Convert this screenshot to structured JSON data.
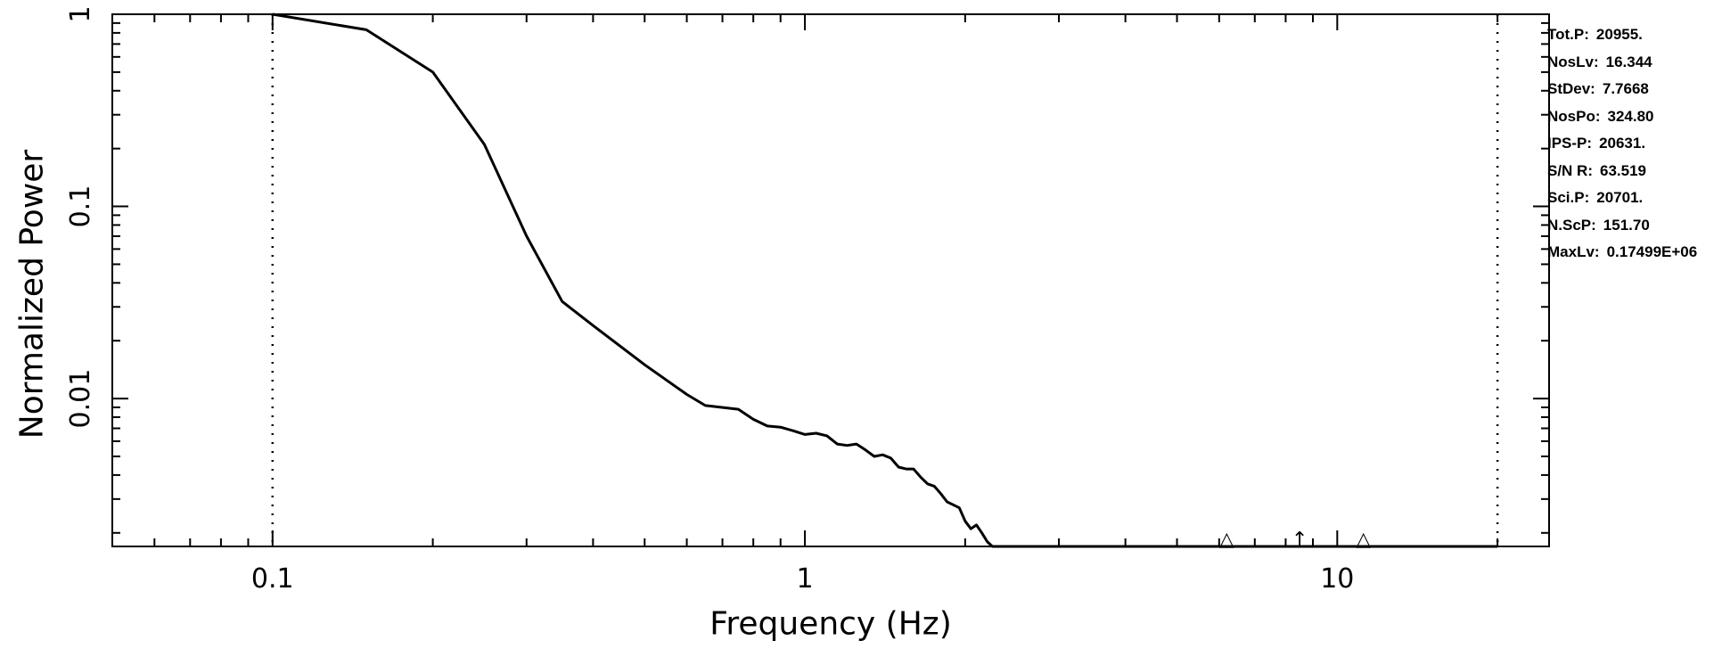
{
  "chart_data": {
    "type": "line",
    "xlabel": "Frequency (Hz)",
    "ylabel": "Normalized Power",
    "x_scale": "log",
    "y_scale": "log",
    "xlim": [
      0.05,
      25
    ],
    "ylim": [
      0.0017,
      1
    ],
    "x_ticks": [
      {
        "value": 0.1,
        "label": "0.1"
      },
      {
        "value": 1,
        "label": "1"
      },
      {
        "value": 10,
        "label": "10"
      }
    ],
    "y_ticks": [
      {
        "value": 1,
        "label": "1"
      },
      {
        "value": 0.1,
        "label": "0.1"
      },
      {
        "value": 0.01,
        "label": "0.01"
      }
    ],
    "vertical_dotted_lines": [
      0.1,
      20
    ],
    "series": [
      {
        "x": [
          0.1,
          0.15,
          0.2,
          0.25,
          0.3,
          0.35,
          0.4,
          0.5,
          0.6,
          0.65,
          0.75,
          0.8,
          0.85,
          0.9,
          0.95,
          1.0,
          1.05,
          1.1,
          1.15,
          1.2,
          1.25,
          1.3,
          1.35,
          1.4,
          1.45,
          1.5,
          1.55,
          1.6,
          1.65,
          1.7,
          1.75,
          1.8,
          1.85,
          1.9,
          1.95,
          2.0,
          2.05,
          2.1,
          2.15,
          2.2,
          2.25,
          2.3,
          3.0,
          5.0,
          10.0,
          20.0
        ],
        "y": [
          1.0,
          0.83,
          0.5,
          0.21,
          0.07,
          0.032,
          0.024,
          0.015,
          0.0105,
          0.0092,
          0.0088,
          0.0078,
          0.0072,
          0.0071,
          0.0068,
          0.0065,
          0.0066,
          0.0064,
          0.0058,
          0.0057,
          0.0058,
          0.0054,
          0.005,
          0.0051,
          0.0049,
          0.0044,
          0.0043,
          0.0043,
          0.0039,
          0.0036,
          0.0035,
          0.0032,
          0.0029,
          0.0028,
          0.0027,
          0.0023,
          0.0021,
          0.0022,
          0.002,
          0.0018,
          0.0017,
          0.0017,
          0.0017,
          0.0017,
          0.0017,
          0.0017
        ]
      }
    ],
    "markers": [
      {
        "symbol": "△",
        "x": 6.2
      },
      {
        "symbol": "↑",
        "x": 8.5
      },
      {
        "symbol": "△",
        "x": 11.2
      }
    ]
  },
  "stats": [
    {
      "key": "Tot.P:",
      "value": "20955."
    },
    {
      "key": "NosLv:",
      "value": "16.344"
    },
    {
      "key": "StDev:",
      "value": "7.7668"
    },
    {
      "key": "NosPo:",
      "value": "324.80"
    },
    {
      "key": "IPS-P:",
      "value": "20631."
    },
    {
      "key": "S/N R:",
      "value": "63.519"
    },
    {
      "key": "Sci.P:",
      "value": "20701."
    },
    {
      "key": "N.ScP:",
      "value": "151.70"
    },
    {
      "key": "MaxLv:",
      "value": "0.17499E+06"
    }
  ]
}
